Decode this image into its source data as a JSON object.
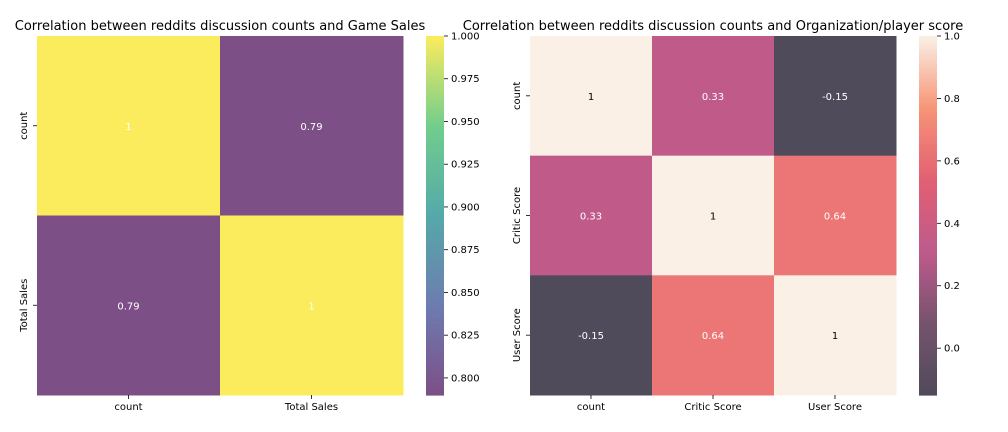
{
  "chart_data": [
    {
      "type": "heatmap",
      "title": "Correlation between reddits discussion counts and Game Sales",
      "x_categories": [
        "count",
        "Total Sales"
      ],
      "y_categories": [
        "count",
        "Total Sales"
      ],
      "values": [
        [
          1,
          0.79
        ],
        [
          0.79,
          1
        ]
      ],
      "cell_labels": [
        [
          "1",
          "0.79"
        ],
        [
          "0.79",
          "1"
        ]
      ],
      "colorbar": {
        "range": [
          0.79,
          1.0
        ],
        "ticks": [
          0.8,
          0.825,
          0.85,
          0.875,
          0.9,
          0.925,
          0.95,
          0.975,
          1.0
        ],
        "tick_labels": [
          "0.800",
          "0.825",
          "0.850",
          "0.875",
          "0.900",
          "0.925",
          "0.950",
          "0.975",
          "1.000"
        ]
      },
      "colormap": "viridis",
      "colormap_stops": [
        "#7c4f86",
        "#6d7cb0",
        "#55a9a9",
        "#71cd8d",
        "#fbec5d"
      ],
      "cell_text_color": "#ffffff",
      "grid": false
    },
    {
      "type": "heatmap",
      "title": "Correlation between reddits discussion counts and Organization/player score",
      "x_categories": [
        "count",
        "Critic Score",
        "User Score"
      ],
      "y_categories": [
        "count",
        "Critic Score",
        "User Score"
      ],
      "values": [
        [
          1,
          0.33,
          -0.15
        ],
        [
          0.33,
          1,
          0.64
        ],
        [
          -0.15,
          0.64,
          1
        ]
      ],
      "cell_labels": [
        [
          "1",
          "0.33",
          "-0.15"
        ],
        [
          "0.33",
          "1",
          "0.64"
        ],
        [
          "-0.15",
          "0.64",
          "1"
        ]
      ],
      "colorbar": {
        "range": [
          -0.15,
          1.0
        ],
        "ticks": [
          0.0,
          0.2,
          0.4,
          0.6,
          0.8,
          1.0
        ],
        "tick_labels": [
          "0.0",
          "0.2",
          "0.4",
          "0.6",
          "0.8",
          "1.0"
        ]
      },
      "colormap": "rocket",
      "colormap_stops": [
        "#4f4b5a",
        "#76526e",
        "#bd5b8b",
        "#e25f73",
        "#f79477",
        "#faf0e6"
      ],
      "cell_text_color_dark": "#000000",
      "cell_text_color_light": "#ffffff",
      "grid": false
    }
  ]
}
